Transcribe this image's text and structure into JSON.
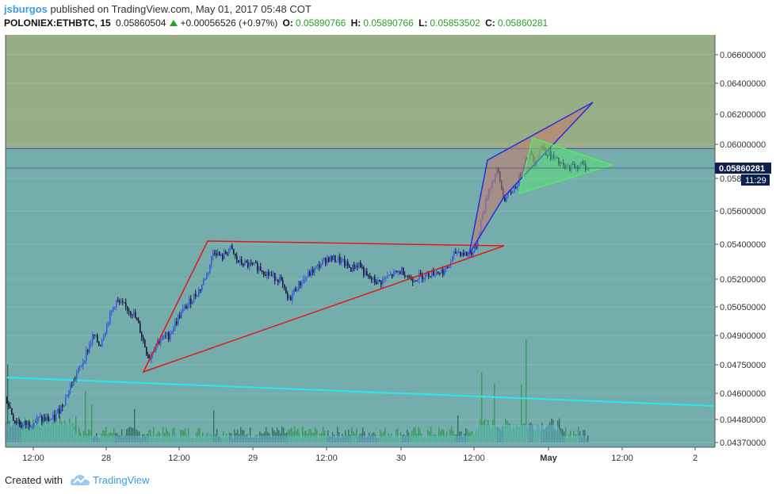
{
  "header": {
    "author": "jsburgos",
    "published_text": "published on TradingView.com, May 01, 2017 05:48 COT",
    "symbol": "POLONIEX:ETHBTC, 15",
    "last": "0.05860504",
    "change": "+0.00056526 (+0.97%)",
    "open_label": "O:",
    "open": "0.05890766",
    "high_label": "H:",
    "high": "0.05890766",
    "low_label": "L:",
    "low": "0.05853502",
    "close_label": "C:",
    "close": "0.05860281"
  },
  "price_tag": {
    "price": "0.05860281",
    "countdown": "11:29"
  },
  "footer": {
    "created_with": "Created with",
    "brand": "TradingView"
  },
  "colors": {
    "up": "#3b5bd6",
    "down": "#14143a",
    "background": "#74adac",
    "upper_zone": "#96ad86",
    "zone_line": "#4a4ab8",
    "red_triangle": "#e01818",
    "blue_wedge": "#2b2be0",
    "green_pennant": "#57e86a",
    "cyan_line": "#2ee6f2",
    "volume_up": "#2f9a4e",
    "volume_down": "#2a6a5c"
  },
  "chart_data": {
    "type": "candlestick",
    "symbol": "POLONIEX:ETHBTC",
    "interval": "15",
    "y_ticks": [
      "0.06600000",
      "0.06400000",
      "0.06200000",
      "0.06000000",
      "0.05800000",
      "0.05600000",
      "0.05400000",
      "0.05200000",
      "0.05050000",
      "0.04900000",
      "0.04750000",
      "0.04600000",
      "0.04480000",
      "0.04370000"
    ],
    "x_ticks": [
      "12:00",
      "28",
      "12:00",
      "29",
      "12:00",
      "30",
      "12:00",
      "May",
      "12:00",
      "2"
    ],
    "last_price": 0.05860281,
    "price_path": [
      [
        0,
        0.0458
      ],
      [
        10,
        0.0448
      ],
      [
        20,
        0.0445
      ],
      [
        40,
        0.0448
      ],
      [
        60,
        0.0448
      ],
      [
        75,
        0.0458
      ],
      [
        85,
        0.0467
      ],
      [
        95,
        0.0475
      ],
      [
        110,
        0.049
      ],
      [
        118,
        0.0485
      ],
      [
        128,
        0.0497
      ],
      [
        138,
        0.0508
      ],
      [
        150,
        0.0505
      ],
      [
        160,
        0.0502
      ],
      [
        168,
        0.0494
      ],
      [
        180,
        0.0478
      ],
      [
        190,
        0.0487
      ],
      [
        205,
        0.049
      ],
      [
        218,
        0.05
      ],
      [
        230,
        0.0507
      ],
      [
        245,
        0.0515
      ],
      [
        255,
        0.0525
      ],
      [
        262,
        0.0537
      ],
      [
        272,
        0.0532
      ],
      [
        282,
        0.0538
      ],
      [
        292,
        0.053
      ],
      [
        305,
        0.0528
      ],
      [
        318,
        0.0527
      ],
      [
        330,
        0.0523
      ],
      [
        345,
        0.052
      ],
      [
        356,
        0.0508
      ],
      [
        365,
        0.0515
      ],
      [
        380,
        0.0522
      ],
      [
        393,
        0.0527
      ],
      [
        405,
        0.0532
      ],
      [
        420,
        0.0531
      ],
      [
        435,
        0.0526
      ],
      [
        445,
        0.0529
      ],
      [
        455,
        0.0521
      ],
      [
        470,
        0.0518
      ],
      [
        485,
        0.0522
      ],
      [
        500,
        0.0525
      ],
      [
        510,
        0.052
      ],
      [
        525,
        0.0522
      ],
      [
        540,
        0.0524
      ],
      [
        555,
        0.0525
      ],
      [
        568,
        0.0536
      ],
      [
        582,
        0.0534
      ],
      [
        592,
        0.0537
      ],
      [
        600,
        0.0556
      ],
      [
        610,
        0.0575
      ],
      [
        620,
        0.0585
      ],
      [
        628,
        0.0567
      ],
      [
        638,
        0.0572
      ],
      [
        645,
        0.0577
      ],
      [
        652,
        0.0588
      ],
      [
        660,
        0.0595
      ],
      [
        667,
        0.059
      ],
      [
        675,
        0.0599
      ],
      [
        685,
        0.0594
      ],
      [
        695,
        0.059
      ],
      [
        705,
        0.0586
      ],
      [
        715,
        0.0587
      ],
      [
        725,
        0.0588
      ],
      [
        735,
        0.0586
      ]
    ],
    "volume_spikes": [
      {
        "bar": 2,
        "value": 0.58
      },
      {
        "bar": 100,
        "value": 0.38
      },
      {
        "bar": 108,
        "value": 0.28
      },
      {
        "bar": 162,
        "value": 0.25
      },
      {
        "bar": 215,
        "value": 0.32
      },
      {
        "bar": 262,
        "value": 0.24
      },
      {
        "bar": 405,
        "value": 0.18
      },
      {
        "bar": 570,
        "value": 0.2
      },
      {
        "bar": 600,
        "value": 0.52
      },
      {
        "bar": 616,
        "value": 0.44
      },
      {
        "bar": 650,
        "value": 0.43
      },
      {
        "bar": 656,
        "value": 0.76
      }
    ]
  }
}
